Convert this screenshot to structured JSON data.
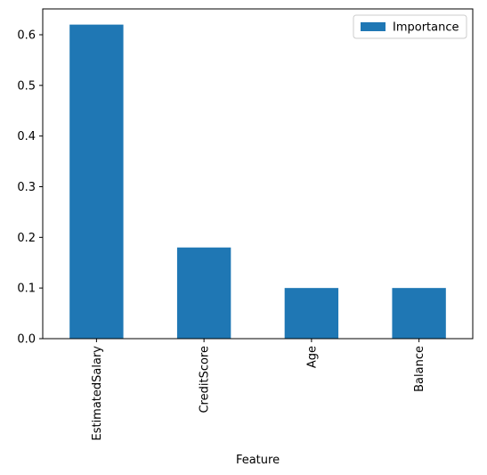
{
  "chart_data": {
    "type": "bar",
    "categories": [
      "EstimatedSalary",
      "CreditScore",
      "Age",
      "Balance"
    ],
    "series": [
      {
        "name": "Importance",
        "values": [
          0.62,
          0.18,
          0.1,
          0.1
        ],
        "color": "#1f77b4"
      }
    ],
    "xlabel": "Feature",
    "ylabel": "",
    "ylim": [
      0,
      0.651
    ],
    "yticks": [
      0.0,
      0.1,
      0.2,
      0.3,
      0.4,
      0.5,
      0.6
    ],
    "ytick_labels": [
      "0.0",
      "0.1",
      "0.2",
      "0.3",
      "0.4",
      "0.5",
      "0.6"
    ],
    "legend": "top-right",
    "grid": false,
    "xtick_rotation": -90
  }
}
